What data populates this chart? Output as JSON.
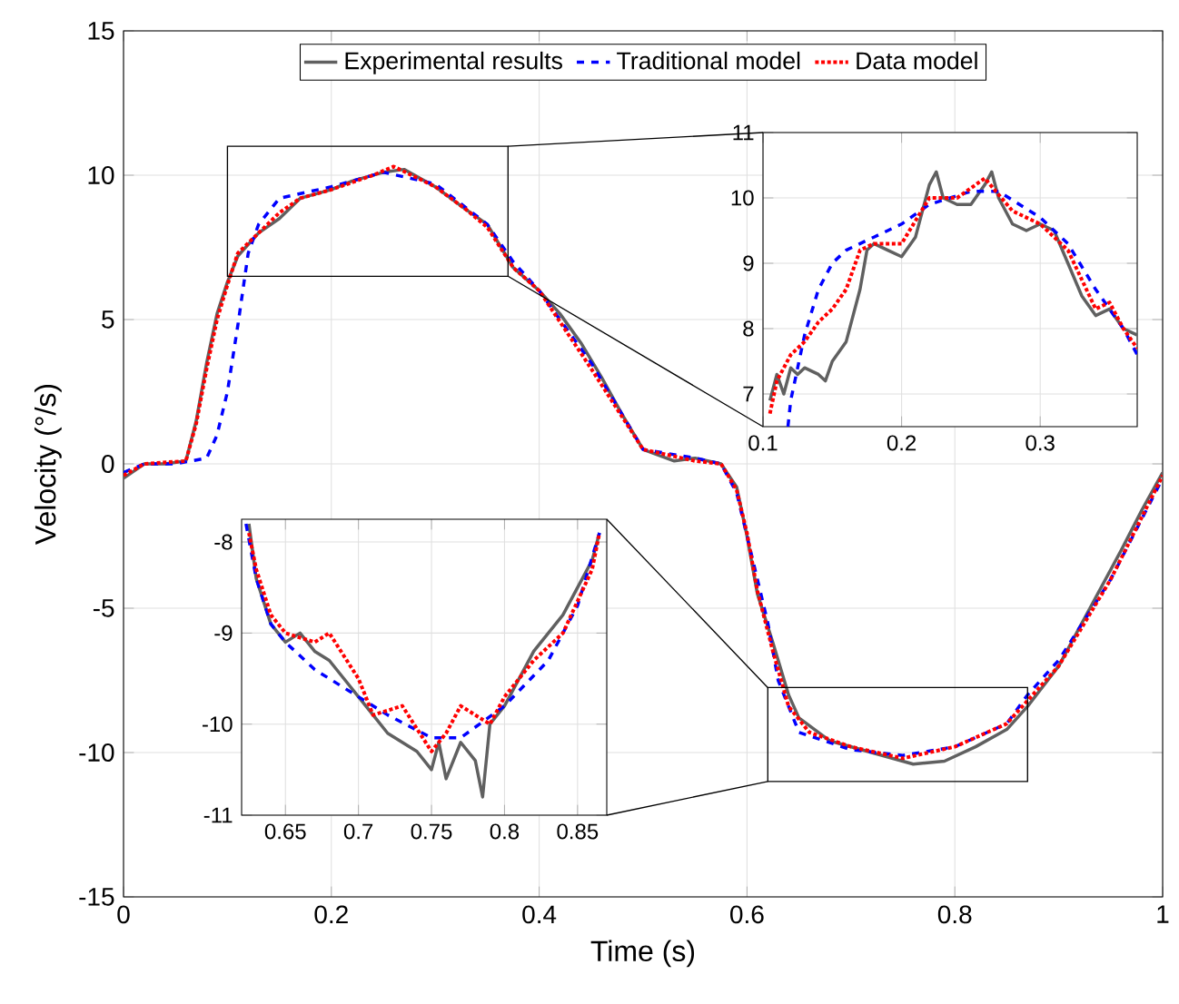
{
  "chart_data": [
    {
      "type": "line",
      "xlabel": "Time (s)",
      "ylabel": "Velocity (°/s)",
      "xlim": [
        0,
        1
      ],
      "ylim": [
        -15,
        15
      ],
      "xticks": [
        0,
        0.2,
        0.4,
        0.6,
        0.8,
        1
      ],
      "yticks": [
        -15,
        -10,
        -5,
        0,
        5,
        10,
        15
      ],
      "grid": true,
      "legend": "top",
      "series": [
        {
          "name": "Experimental results",
          "color": "#606060",
          "line_style": "solid",
          "x": [
            0,
            0.02,
            0.04,
            0.06,
            0.07,
            0.08,
            0.09,
            0.1,
            0.11,
            0.13,
            0.15,
            0.17,
            0.2,
            0.22,
            0.25,
            0.27,
            0.3,
            0.33,
            0.35,
            0.375,
            0.4,
            0.42,
            0.44,
            0.46,
            0.48,
            0.5,
            0.53,
            0.55,
            0.575,
            0.59,
            0.6,
            0.61,
            0.625,
            0.64,
            0.65,
            0.68,
            0.72,
            0.76,
            0.79,
            0.82,
            0.85,
            0.87,
            0.9,
            0.93,
            0.96,
            0.98,
            1
          ],
          "values": [
            -0.5,
            0,
            0,
            0.1,
            1.5,
            3.5,
            5.2,
            6.3,
            7.2,
            8.0,
            8.5,
            9.2,
            9.5,
            9.8,
            10.1,
            10.2,
            9.6,
            8.8,
            8.3,
            6.8,
            6.0,
            5.2,
            4.2,
            3.0,
            1.7,
            0.5,
            0.1,
            0.2,
            0,
            -0.8,
            -2.5,
            -4.5,
            -6.2,
            -8.0,
            -8.8,
            -9.6,
            -10.0,
            -10.4,
            -10.3,
            -9.8,
            -9.2,
            -8.4,
            -7.0,
            -5.0,
            -3.0,
            -1.6,
            -0.3
          ]
        },
        {
          "name": "Traditional model",
          "color": "#0000ff",
          "line_style": "dashed",
          "x": [
            0,
            0.02,
            0.05,
            0.08,
            0.09,
            0.1,
            0.11,
            0.12,
            0.13,
            0.15,
            0.2,
            0.25,
            0.3,
            0.35,
            0.375,
            0.4,
            0.45,
            0.5,
            0.55,
            0.575,
            0.59,
            0.6,
            0.62,
            0.63,
            0.65,
            0.7,
            0.75,
            0.8,
            0.85,
            0.87,
            0.9,
            0.95,
            1
          ],
          "values": [
            -0.3,
            0,
            0,
            0.2,
            1.0,
            2.5,
            4.8,
            7.3,
            8.3,
            9.2,
            9.6,
            10.1,
            9.7,
            8.3,
            7.0,
            6.0,
            3.5,
            0.5,
            0.2,
            0,
            -1.0,
            -2.5,
            -5.5,
            -7.5,
            -9.3,
            -9.9,
            -10.1,
            -9.8,
            -9.0,
            -8.0,
            -6.8,
            -4.0,
            -0.5
          ]
        },
        {
          "name": "Data model",
          "color": "#ff0000",
          "line_style": "dotted",
          "x": [
            0,
            0.02,
            0.06,
            0.07,
            0.08,
            0.09,
            0.1,
            0.11,
            0.13,
            0.15,
            0.17,
            0.2,
            0.24,
            0.26,
            0.3,
            0.33,
            0.35,
            0.375,
            0.4,
            0.45,
            0.5,
            0.55,
            0.575,
            0.59,
            0.6,
            0.61,
            0.625,
            0.64,
            0.66,
            0.7,
            0.75,
            0.8,
            0.85,
            0.87,
            0.9,
            0.95,
            1
          ],
          "values": [
            -0.4,
            0,
            0.1,
            1.4,
            3.3,
            5.0,
            6.2,
            7.3,
            8.0,
            8.7,
            9.2,
            9.5,
            10.0,
            10.3,
            9.6,
            8.8,
            8.2,
            6.8,
            6.0,
            3.3,
            0.5,
            0.1,
            0,
            -0.9,
            -2.4,
            -4.4,
            -6.5,
            -8.4,
            -9.3,
            -9.8,
            -10.2,
            -9.8,
            -9.0,
            -8.2,
            -7.0,
            -4.0,
            -0.4
          ]
        }
      ]
    },
    {
      "type": "line",
      "xlim": [
        0.1,
        0.37
      ],
      "ylim": [
        6.5,
        11
      ],
      "xticks": [
        0.1,
        0.2,
        0.3
      ],
      "yticks": [
        7,
        8,
        9,
        10,
        11
      ],
      "grid": true,
      "series": [
        {
          "color": "#606060",
          "line_style": "solid",
          "x": [
            0.105,
            0.11,
            0.115,
            0.12,
            0.125,
            0.13,
            0.14,
            0.145,
            0.15,
            0.16,
            0.17,
            0.175,
            0.18,
            0.19,
            0.2,
            0.21,
            0.22,
            0.225,
            0.23,
            0.24,
            0.25,
            0.26,
            0.265,
            0.27,
            0.28,
            0.29,
            0.3,
            0.31,
            0.32,
            0.33,
            0.34,
            0.35,
            0.36,
            0.37
          ],
          "values": [
            6.9,
            7.3,
            7.0,
            7.4,
            7.3,
            7.4,
            7.3,
            7.2,
            7.5,
            7.8,
            8.6,
            9.2,
            9.3,
            9.2,
            9.1,
            9.4,
            10.2,
            10.4,
            10.0,
            9.9,
            9.9,
            10.2,
            10.4,
            10.0,
            9.6,
            9.5,
            9.6,
            9.5,
            9.0,
            8.5,
            8.2,
            8.3,
            8.0,
            7.9
          ]
        },
        {
          "color": "#0000ff",
          "line_style": "dashed",
          "x": [
            0.118,
            0.12,
            0.13,
            0.14,
            0.15,
            0.16,
            0.18,
            0.2,
            0.22,
            0.25,
            0.27,
            0.3,
            0.32,
            0.34,
            0.36,
            0.37
          ],
          "values": [
            6.5,
            6.9,
            7.9,
            8.6,
            9.0,
            9.2,
            9.4,
            9.6,
            9.9,
            10.1,
            10.1,
            9.7,
            9.3,
            8.6,
            8.0,
            7.6
          ]
        },
        {
          "color": "#ff0000",
          "line_style": "dotted",
          "x": [
            0.105,
            0.11,
            0.12,
            0.13,
            0.14,
            0.15,
            0.16,
            0.17,
            0.18,
            0.2,
            0.22,
            0.24,
            0.26,
            0.28,
            0.3,
            0.32,
            0.34,
            0.35,
            0.36,
            0.37
          ],
          "values": [
            6.7,
            7.2,
            7.6,
            7.8,
            8.1,
            8.3,
            8.6,
            9.2,
            9.3,
            9.3,
            10.0,
            10.0,
            10.3,
            9.8,
            9.6,
            9.2,
            8.3,
            8.4,
            8.0,
            7.7
          ]
        }
      ]
    },
    {
      "type": "line",
      "xlim": [
        0.62,
        0.87
      ],
      "ylim": [
        -11,
        -7.75
      ],
      "xticks": [
        0.65,
        0.7,
        0.75,
        0.8,
        0.85
      ],
      "yticks": [
        -11,
        -10,
        -9,
        -8
      ],
      "grid": true,
      "series": [
        {
          "color": "#606060",
          "line_style": "solid",
          "x": [
            0.625,
            0.63,
            0.64,
            0.65,
            0.66,
            0.67,
            0.68,
            0.69,
            0.7,
            0.71,
            0.72,
            0.73,
            0.74,
            0.75,
            0.755,
            0.76,
            0.77,
            0.78,
            0.785,
            0.79,
            0.8,
            0.81,
            0.82,
            0.83,
            0.84,
            0.85,
            0.86,
            0.865
          ],
          "values": [
            -7.8,
            -8.4,
            -8.9,
            -9.1,
            -9.0,
            -9.2,
            -9.3,
            -9.5,
            -9.7,
            -9.9,
            -10.1,
            -10.2,
            -10.3,
            -10.5,
            -10.2,
            -10.6,
            -10.2,
            -10.4,
            -10.8,
            -10.0,
            -9.8,
            -9.5,
            -9.2,
            -9.0,
            -8.8,
            -8.5,
            -8.2,
            -7.9
          ]
        },
        {
          "color": "#0000ff",
          "line_style": "dashed",
          "x": [
            0.623,
            0.63,
            0.64,
            0.65,
            0.67,
            0.7,
            0.72,
            0.75,
            0.77,
            0.8,
            0.83,
            0.85,
            0.865
          ],
          "values": [
            -7.8,
            -8.4,
            -8.9,
            -9.1,
            -9.4,
            -9.7,
            -9.9,
            -10.15,
            -10.15,
            -9.8,
            -9.3,
            -8.7,
            -7.9
          ]
        },
        {
          "color": "#ff0000",
          "line_style": "dotted",
          "x": [
            0.625,
            0.63,
            0.64,
            0.65,
            0.67,
            0.68,
            0.7,
            0.71,
            0.73,
            0.75,
            0.76,
            0.77,
            0.79,
            0.8,
            0.82,
            0.84,
            0.86,
            0.865
          ],
          "values": [
            -7.9,
            -8.3,
            -8.8,
            -9.0,
            -9.1,
            -9.0,
            -9.5,
            -9.9,
            -9.8,
            -10.3,
            -10.1,
            -9.8,
            -10.0,
            -9.7,
            -9.3,
            -9.0,
            -8.3,
            -7.9
          ]
        }
      ]
    }
  ]
}
